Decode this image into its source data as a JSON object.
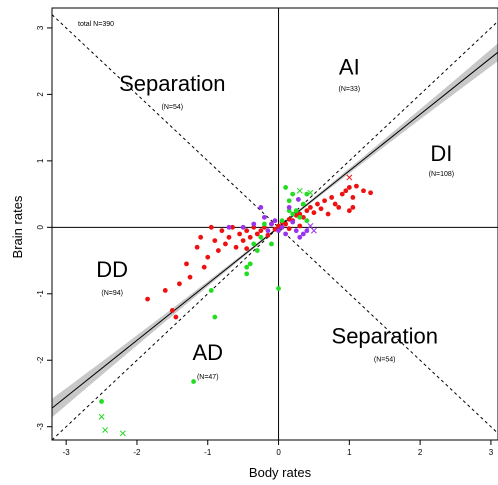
{
  "chart_data": {
    "type": "scatter",
    "xlabel": "Body rates",
    "ylabel": "Brain rates",
    "xlim": [
      -3.2,
      3.1
    ],
    "ylim": [
      -3.2,
      3.3
    ],
    "x_ticks": [
      -3,
      -2,
      -1,
      0,
      1,
      2,
      3
    ],
    "y_ticks": [
      -3,
      -2,
      -1,
      0,
      1,
      2,
      3
    ],
    "total_label": "total N=390",
    "quadrant_labels": [
      {
        "id": "sep-top",
        "label": "Separation",
        "n": "(N=54)",
        "x": -1.5,
        "y": 2.05,
        "size": "large",
        "n_x": -1.5,
        "n_y": 1.78
      },
      {
        "id": "ai",
        "label": "AI",
        "n": "(N=33)",
        "x": 1.0,
        "y": 2.3,
        "size": "large",
        "n_x": 1.0,
        "n_y": 2.05
      },
      {
        "id": "di",
        "label": "DI",
        "n": "(N=108)",
        "x": 2.3,
        "y": 1.0,
        "size": "large",
        "n_x": 2.3,
        "n_y": 0.77
      },
      {
        "id": "dd",
        "label": "DD",
        "n": "(N=94)",
        "x": -2.35,
        "y": -0.75,
        "size": "large",
        "n_x": -2.35,
        "n_y": -1.02
      },
      {
        "id": "ad",
        "label": "AD",
        "n": "(N=47)",
        "x": -1.0,
        "y": -2.0,
        "size": "large",
        "n_x": -1.0,
        "n_y": -2.28
      },
      {
        "id": "sep-bottom",
        "label": "Separation",
        "n": "(N=54)",
        "x": 1.5,
        "y": -1.75,
        "size": "large",
        "n_x": 1.5,
        "n_y": -2.02
      }
    ],
    "regression": {
      "slope": 0.85,
      "intercept": 0.0,
      "x_range": [
        -3.2,
        3.1
      ],
      "ci_width_at_edges": 0.12
    },
    "colors": {
      "red": "#ee1111",
      "green": "#22dd22",
      "purple": "#9933ee"
    },
    "series": [
      {
        "color": "red",
        "marker": "dot",
        "points": [
          [
            -1.85,
            -1.08
          ],
          [
            -1.6,
            -0.95
          ],
          [
            -1.5,
            -1.25
          ],
          [
            -1.45,
            -1.35
          ],
          [
            -1.4,
            -0.85
          ],
          [
            -1.3,
            -0.55
          ],
          [
            -1.25,
            -0.75
          ],
          [
            -1.15,
            -0.3
          ],
          [
            -1.1,
            -0.15
          ],
          [
            -1.05,
            -0.6
          ],
          [
            -1.0,
            -0.45
          ],
          [
            -0.95,
            0.0
          ],
          [
            -0.9,
            -0.2
          ],
          [
            -0.85,
            -0.35
          ],
          [
            -0.8,
            -0.05
          ],
          [
            -0.75,
            -0.25
          ],
          [
            -0.7,
            -0.15
          ],
          [
            -0.65,
            0.0
          ],
          [
            -0.6,
            -0.3
          ],
          [
            -0.55,
            -0.1
          ],
          [
            -0.5,
            -0.2
          ],
          [
            -0.45,
            -0.05
          ],
          [
            -0.4,
            -0.15
          ],
          [
            -0.35,
            0.0
          ],
          [
            -0.3,
            -0.1
          ],
          [
            -0.25,
            -0.05
          ],
          [
            -0.2,
            0.0
          ],
          [
            -0.15,
            -0.12
          ],
          [
            -0.1,
            0.05
          ],
          [
            -0.05,
            -0.03
          ],
          [
            0.0,
            0.02
          ],
          [
            0.05,
            0.08
          ],
          [
            0.1,
            0.05
          ],
          [
            0.15,
            0.12
          ],
          [
            0.2,
            0.1
          ],
          [
            0.25,
            0.18
          ],
          [
            0.3,
            0.2
          ],
          [
            0.35,
            0.15
          ],
          [
            0.4,
            0.25
          ],
          [
            0.45,
            0.3
          ],
          [
            0.5,
            0.22
          ],
          [
            0.55,
            0.35
          ],
          [
            0.6,
            0.28
          ],
          [
            0.65,
            0.4
          ],
          [
            0.7,
            0.2
          ],
          [
            0.75,
            0.45
          ],
          [
            0.8,
            0.35
          ],
          [
            0.85,
            0.3
          ],
          [
            0.9,
            0.5
          ],
          [
            0.95,
            0.55
          ],
          [
            1.0,
            0.6
          ],
          [
            1.05,
            0.45
          ],
          [
            1.1,
            0.62
          ],
          [
            1.2,
            0.55
          ],
          [
            1.3,
            0.52
          ],
          [
            1.0,
            0.25
          ],
          [
            1.05,
            0.3
          ],
          [
            0.3,
            0.02
          ],
          [
            0.15,
            -0.02
          ],
          [
            -0.45,
            -0.32
          ]
        ]
      },
      {
        "color": "green",
        "marker": "dot",
        "points": [
          [
            -2.5,
            -2.62
          ],
          [
            -1.2,
            -2.32
          ],
          [
            -0.9,
            -1.35
          ],
          [
            -0.95,
            -0.95
          ],
          [
            0.0,
            -0.92
          ],
          [
            -0.45,
            -0.6
          ],
          [
            -0.45,
            -0.7
          ],
          [
            -0.4,
            -0.55
          ],
          [
            -0.35,
            -0.25
          ],
          [
            -0.3,
            -0.35
          ],
          [
            -0.25,
            -0.15
          ],
          [
            -0.2,
            0.05
          ],
          [
            -0.1,
            -0.25
          ],
          [
            0.05,
            0.1
          ],
          [
            0.1,
            0.6
          ],
          [
            0.15,
            0.4
          ],
          [
            0.2,
            0.5
          ],
          [
            0.25,
            0.25
          ],
          [
            0.3,
            0.15
          ],
          [
            0.35,
            0.35
          ],
          [
            0.4,
            0.1
          ],
          [
            0.15,
            0.25
          ],
          [
            0.2,
            0.2
          ],
          [
            0.4,
            0.5
          ]
        ]
      },
      {
        "color": "green",
        "marker": "cross",
        "points": [
          [
            -2.5,
            -2.85
          ],
          [
            -2.45,
            -3.05
          ],
          [
            -2.2,
            -3.1
          ],
          [
            0.3,
            0.55
          ],
          [
            0.45,
            0.52
          ]
        ]
      },
      {
        "color": "purple",
        "marker": "dot",
        "points": [
          [
            -0.7,
            0.0
          ],
          [
            -0.5,
            0.0
          ],
          [
            -0.35,
            0.05
          ],
          [
            -0.25,
            0.3
          ],
          [
            -0.2,
            0.15
          ],
          [
            -0.15,
            -0.05
          ],
          [
            -0.1,
            0.05
          ],
          [
            -0.05,
            0.1
          ],
          [
            0.0,
            -0.05
          ],
          [
            0.1,
            -0.1
          ],
          [
            0.15,
            0.3
          ],
          [
            0.2,
            0.08
          ],
          [
            0.25,
            -0.05
          ],
          [
            0.3,
            -0.15
          ],
          [
            0.35,
            -0.1
          ],
          [
            0.4,
            -0.05
          ],
          [
            0.28,
            0.42
          ],
          [
            0.05,
            0.0
          ]
        ]
      },
      {
        "color": "purple",
        "marker": "cross",
        "points": [
          [
            0.45,
            0.02
          ],
          [
            0.5,
            -0.05
          ]
        ]
      },
      {
        "color": "red",
        "marker": "cross",
        "points": [
          [
            1.0,
            0.75
          ]
        ]
      }
    ]
  }
}
